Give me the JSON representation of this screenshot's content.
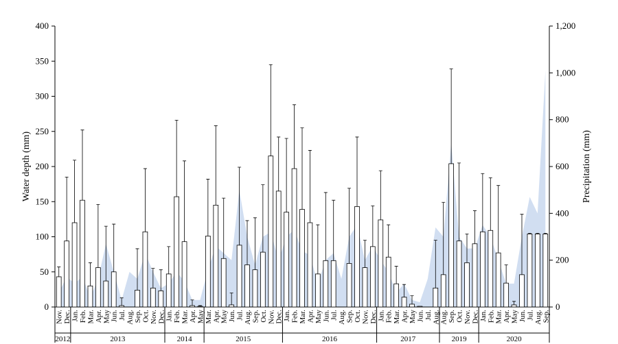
{
  "chart_data": {
    "type": "bar",
    "y_label": "Water depth (mm)",
    "y2_label": "Precipitation  (mm)",
    "categories": [
      "Nov.",
      "Dec.",
      "Jan.",
      "Feb.",
      "Mar.",
      "Apr.",
      "May",
      "Jun.",
      "Jul.",
      "Aug.",
      "Sep.",
      "Oct.",
      "Nov.",
      "Dec.",
      "Jan.",
      "Feb.",
      "Mar.",
      "Apr.",
      "May",
      "Mar.",
      "Apr.",
      "May",
      "Jun.",
      "Jul.",
      "Aug.",
      "Sep.",
      "Oct.",
      "Nov.",
      "Dec.",
      "Jan.",
      "Feb.",
      "Mar.",
      "Apr.",
      "May",
      "Jun.",
      "Jul.",
      "Aug.",
      "Sep.",
      "Oct.",
      "Nov.",
      "Dec.",
      "Jan.",
      "Feb.",
      "Mar.",
      "Apr.",
      "May",
      "Jun.",
      "Jul.",
      "Aug.",
      "Aug.",
      "Sep.",
      "Oct.",
      "Nov.",
      "Dec.",
      "Jan.",
      "Feb.",
      "Mar.",
      "Apr.",
      "May",
      "Jun.",
      "Jul.",
      "Aug.",
      "Sep."
    ],
    "years": [
      "2012",
      "2012",
      "2013",
      "2013",
      "2013",
      "2013",
      "2013",
      "2013",
      "2013",
      "2013",
      "2013",
      "2013",
      "2013",
      "2013",
      "2014",
      "2014",
      "2014",
      "2014",
      "2014",
      "2015",
      "2015",
      "2015",
      "2015",
      "2015",
      "2015",
      "2015",
      "2015",
      "2015",
      "2015",
      "2016",
      "2016",
      "2016",
      "2016",
      "2016",
      "2016",
      "2016",
      "2016",
      "2016",
      "2016",
      "2016",
      "2016",
      "2017",
      "2017",
      "2017",
      "2017",
      "2017",
      "2017",
      "2017",
      "2017",
      "2019",
      "2019",
      "2019",
      "2019",
      "2019",
      "2020",
      "2020",
      "2020",
      "2020",
      "2020",
      "2020",
      "2020",
      "2020",
      "2020"
    ],
    "series": [
      {
        "type": "bar",
        "color": "#ffffff",
        "stroke": "#000000",
        "values": [
          43,
          94,
          120,
          152,
          30,
          56,
          37,
          50,
          2,
          0,
          24,
          107,
          27,
          23,
          47,
          157,
          93,
          2,
          1,
          101,
          145,
          69,
          3,
          88,
          60,
          53,
          78,
          215,
          165,
          135,
          197,
          139,
          120,
          47,
          66,
          66,
          0,
          62,
          143,
          56,
          86,
          124,
          71,
          33,
          14,
          4,
          1,
          0,
          27,
          46,
          204,
          94,
          63,
          90,
          107,
          109,
          77,
          34,
          3,
          46,
          104,
          104,
          104
        ],
        "errors": [
          14,
          91,
          89,
          100,
          33,
          90,
          78,
          68,
          11,
          0,
          59,
          90,
          28,
          30,
          39,
          109,
          115,
          8,
          1,
          81,
          113,
          86,
          17,
          111,
          63,
          74,
          96,
          130,
          77,
          105,
          91,
          116,
          103,
          70,
          97,
          86,
          0,
          107,
          99,
          39,
          58,
          70,
          46,
          25,
          18,
          12,
          0,
          0,
          68,
          103,
          135,
          111,
          41,
          47,
          83,
          75,
          96,
          26,
          5,
          86,
          1,
          1,
          1
        ]
      },
      {
        "type": "area",
        "axis": "y2",
        "color": "#c9d8ef",
        "values": [
          60,
          130,
          100,
          130,
          40,
          120,
          270,
          150,
          30,
          150,
          120,
          230,
          150,
          80,
          100,
          150,
          110,
          30,
          30,
          160,
          260,
          230,
          200,
          500,
          300,
          180,
          300,
          320,
          200,
          300,
          330,
          240,
          220,
          100,
          200,
          230,
          120,
          300,
          350,
          200,
          260,
          200,
          150,
          60,
          100,
          30,
          20,
          120,
          340,
          300,
          700,
          300,
          250,
          250,
          350,
          300,
          200,
          100,
          100,
          300,
          470,
          400,
          1010
        ]
      }
    ],
    "ylim": [
      0,
      400
    ],
    "yticks": [
      0,
      50,
      100,
      150,
      200,
      250,
      300,
      350,
      400
    ],
    "y2lim": [
      0,
      1200
    ],
    "y2ticks": [
      0,
      200,
      400,
      600,
      800,
      {
        "value": 1000,
        "label": "1,000"
      },
      {
        "value": 1200,
        "label": "1,200"
      }
    ]
  }
}
